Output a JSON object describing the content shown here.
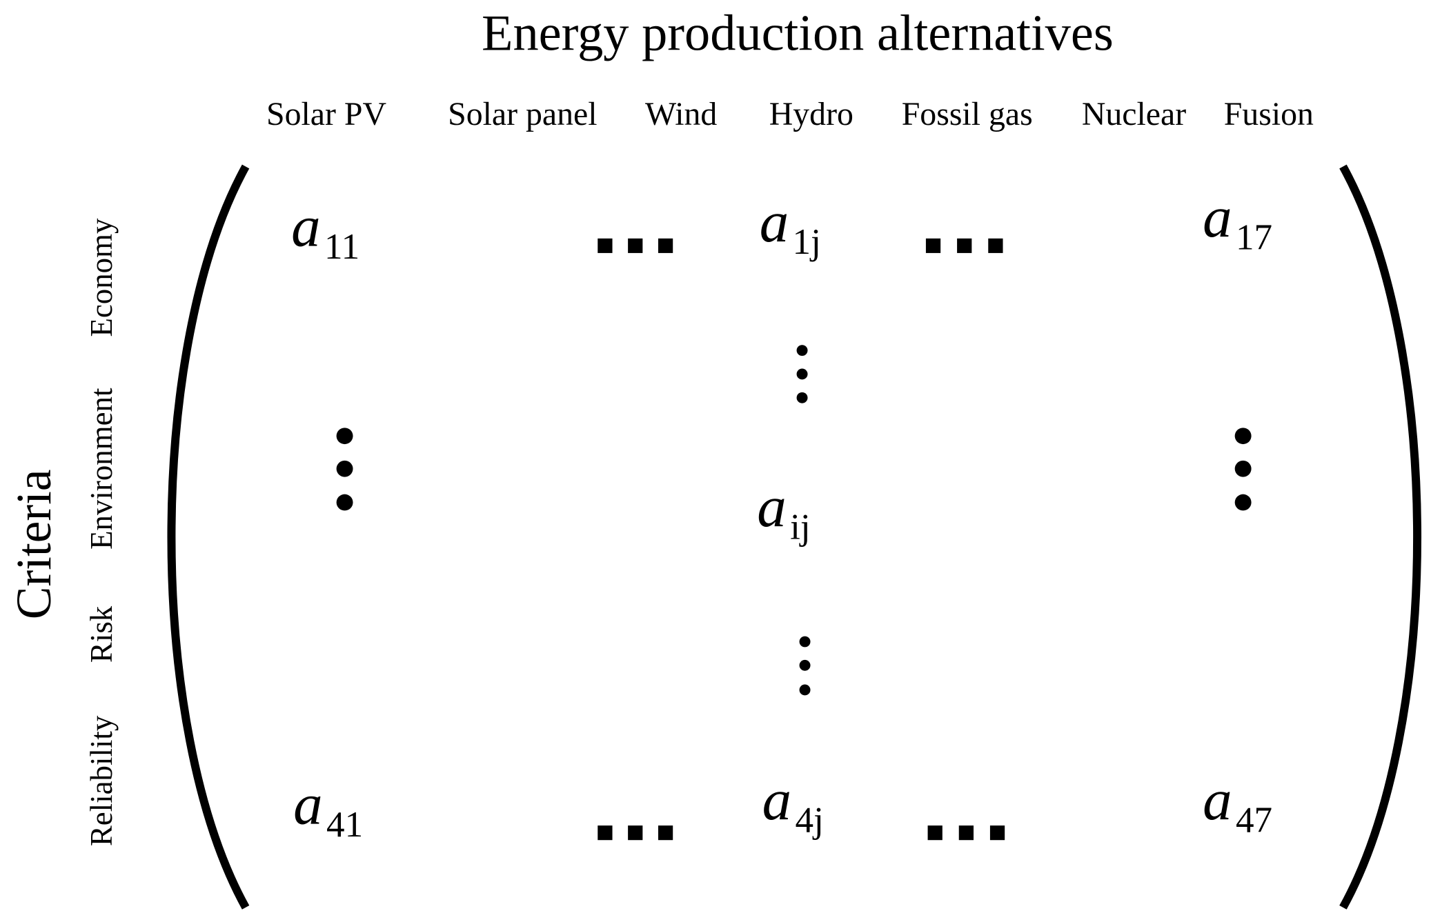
{
  "title": "Energy production alternatives",
  "alternatives": [
    "Solar PV",
    "Solar panel",
    "Wind",
    "Hydro",
    "Fossil gas",
    "Nuclear",
    "Fusion"
  ],
  "criteria_label": "Criteria",
  "criteria": [
    "Economy",
    "Environment",
    "Risk",
    "Reliability"
  ],
  "matrix": [
    {
      "base": "a",
      "sub": "11"
    },
    {
      "base": "a",
      "sub": "1j"
    },
    {
      "base": "a",
      "sub": "17"
    },
    {
      "base": "a",
      "sub": "ij"
    },
    {
      "base": "a",
      "sub": "41"
    },
    {
      "base": "a",
      "sub": "4j"
    },
    {
      "base": "a",
      "sub": "47"
    }
  ]
}
